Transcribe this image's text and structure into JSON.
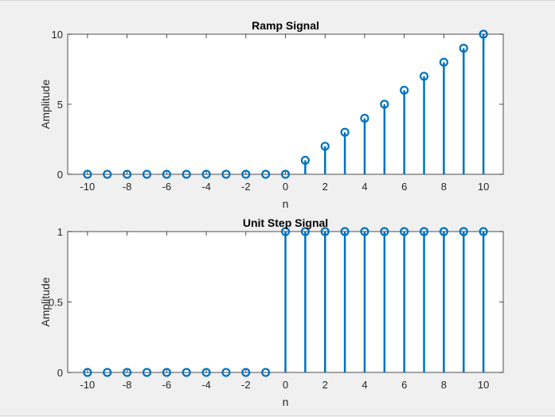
{
  "window": {
    "background": "#f0f0f0",
    "border_color": "#d8d8d8"
  },
  "chart_data": [
    {
      "type": "stem",
      "title": "Ramp Signal",
      "xlabel": "n",
      "ylabel": "Amplitude",
      "xlim": [
        -11,
        11
      ],
      "ylim": [
        0,
        10
      ],
      "xticks": [
        -10,
        -8,
        -6,
        -4,
        -2,
        0,
        2,
        4,
        6,
        8,
        10
      ],
      "yticks": [
        0,
        5,
        10
      ],
      "x": [
        -10,
        -9,
        -8,
        -7,
        -6,
        -5,
        -4,
        -3,
        -2,
        -1,
        0,
        1,
        2,
        3,
        4,
        5,
        6,
        7,
        8,
        9,
        10
      ],
      "values": [
        0,
        0,
        0,
        0,
        0,
        0,
        0,
        0,
        0,
        0,
        0,
        1,
        2,
        3,
        4,
        5,
        6,
        7,
        8,
        9,
        10
      ],
      "color": "#0072bd",
      "grid": false
    },
    {
      "type": "stem",
      "title": "Unit Step Signal",
      "xlabel": "n",
      "ylabel": "Amplitude",
      "xlim": [
        -11,
        11
      ],
      "ylim": [
        0,
        1
      ],
      "xticks": [
        -10,
        -8,
        -6,
        -4,
        -2,
        0,
        2,
        4,
        6,
        8,
        10
      ],
      "yticks": [
        0,
        0.5,
        1
      ],
      "x": [
        -10,
        -9,
        -8,
        -7,
        -6,
        -5,
        -4,
        -3,
        -2,
        -1,
        0,
        1,
        2,
        3,
        4,
        5,
        6,
        7,
        8,
        9,
        10
      ],
      "values": [
        0,
        0,
        0,
        0,
        0,
        0,
        0,
        0,
        0,
        0,
        1,
        1,
        1,
        1,
        1,
        1,
        1,
        1,
        1,
        1,
        1
      ],
      "color": "#0072bd",
      "grid": false
    }
  ]
}
